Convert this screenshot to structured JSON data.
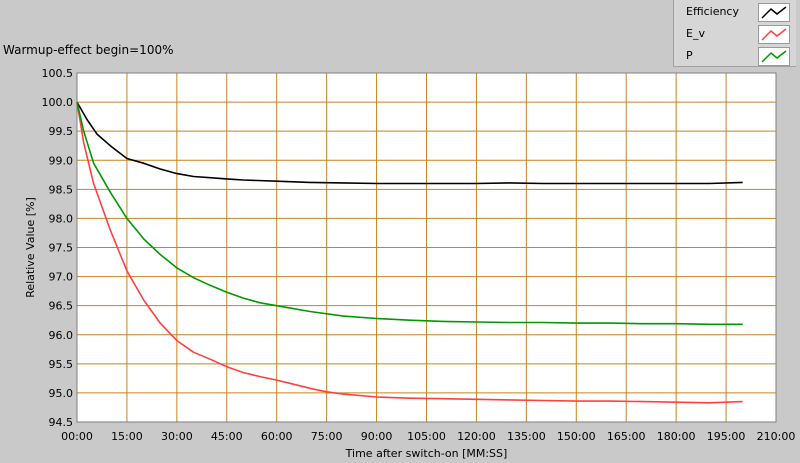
{
  "title": "Warmup-effect begin=100%",
  "chart_data": {
    "type": "line",
    "xlabel": "Time after switch-on [MM:SS]",
    "ylabel": "Relative Value [%]",
    "xlim": [
      0,
      210
    ],
    "ylim": [
      94.5,
      100.5
    ],
    "x_ticks": [
      0,
      15,
      30,
      45,
      60,
      75,
      90,
      105,
      120,
      135,
      150,
      165,
      180,
      195,
      210
    ],
    "x_tick_labels": [
      "00:00",
      "15:00",
      "30:00",
      "45:00",
      "60:00",
      "75:00",
      "90:00",
      "105:00",
      "120:00",
      "135:00",
      "150:00",
      "165:00",
      "180:00",
      "195:00",
      "210:00"
    ],
    "y_ticks": [
      94.5,
      95.0,
      95.5,
      96.0,
      96.5,
      97.0,
      97.5,
      98.0,
      98.5,
      99.0,
      99.5,
      100.0,
      100.5
    ],
    "y_tick_labels": [
      "94.5",
      "95.0",
      "95.5",
      "96.0",
      "96.5",
      "97.0",
      "97.5",
      "98.0",
      "98.5",
      "99.0",
      "99.5",
      "100.0",
      "100.5"
    ],
    "grid": true,
    "legend_position": "top-right",
    "series": [
      {
        "name": "Efficiency",
        "color": "#000000",
        "x": [
          0,
          3,
          6,
          10,
          15,
          20,
          25,
          30,
          35,
          40,
          45,
          50,
          60,
          70,
          80,
          90,
          100,
          110,
          120,
          130,
          140,
          150,
          160,
          170,
          180,
          190,
          200
        ],
        "y": [
          100.0,
          99.7,
          99.45,
          99.25,
          99.03,
          98.95,
          98.85,
          98.77,
          98.72,
          98.7,
          98.68,
          98.66,
          98.64,
          98.62,
          98.61,
          98.6,
          98.6,
          98.6,
          98.6,
          98.61,
          98.6,
          98.6,
          98.6,
          98.6,
          98.6,
          98.6,
          98.62
        ]
      },
      {
        "name": "E_v",
        "color": "#ff4040",
        "x": [
          0,
          2,
          5,
          10,
          15,
          20,
          25,
          30,
          35,
          40,
          45,
          50,
          55,
          60,
          65,
          70,
          75,
          80,
          90,
          100,
          110,
          120,
          130,
          140,
          150,
          160,
          170,
          180,
          190,
          200
        ],
        "y": [
          100.0,
          99.3,
          98.6,
          97.8,
          97.1,
          96.6,
          96.2,
          95.9,
          95.7,
          95.58,
          95.45,
          95.35,
          95.28,
          95.22,
          95.15,
          95.08,
          95.02,
          94.98,
          94.93,
          94.91,
          94.9,
          94.89,
          94.88,
          94.87,
          94.86,
          94.86,
          94.85,
          94.84,
          94.83,
          94.85
        ]
      },
      {
        "name": "P",
        "color": "#009900",
        "x": [
          0,
          2,
          5,
          10,
          15,
          20,
          25,
          30,
          35,
          40,
          45,
          50,
          55,
          60,
          70,
          80,
          90,
          100,
          110,
          120,
          130,
          140,
          150,
          160,
          170,
          180,
          190,
          200
        ],
        "y": [
          100.0,
          99.5,
          98.95,
          98.45,
          98.0,
          97.65,
          97.38,
          97.15,
          96.98,
          96.85,
          96.73,
          96.63,
          96.55,
          96.5,
          96.4,
          96.32,
          96.28,
          96.25,
          96.23,
          96.22,
          96.21,
          96.21,
          96.2,
          96.2,
          96.19,
          96.19,
          96.18,
          96.18
        ]
      }
    ]
  }
}
